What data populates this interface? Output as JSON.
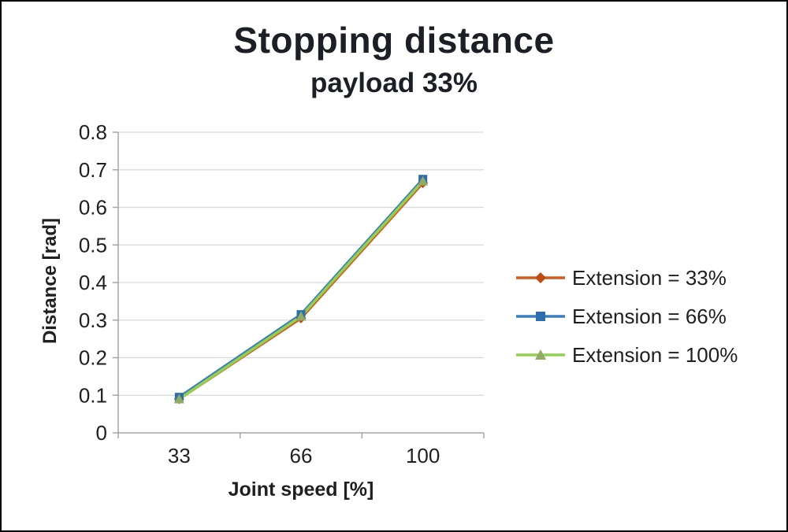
{
  "title": "Stopping distance",
  "subtitle": "payload 33%",
  "chart_data": {
    "type": "line",
    "categories": [
      33,
      66,
      100
    ],
    "x_tick_labels": [
      "33",
      "66",
      "100"
    ],
    "series": [
      {
        "name": "Extension = 33%",
        "values": [
          0.09,
          0.305,
          0.665
        ],
        "color": "#D45B1E",
        "marker_color": "#BE4B10",
        "marker": "diamond"
      },
      {
        "name": "Extension = 66%",
        "values": [
          0.095,
          0.315,
          0.675
        ],
        "color": "#3C7DC0",
        "marker_color": "#2E6DAE",
        "marker": "square"
      },
      {
        "name": "Extension = 100%",
        "values": [
          0.09,
          0.31,
          0.67
        ],
        "color": "#92D050",
        "marker_color": "#90AC62",
        "marker": "triangle"
      }
    ],
    "xlabel": "Joint speed [%]",
    "ylabel": "Distance [rad]",
    "ylim": [
      0,
      0.8
    ],
    "y_ticks": [
      0,
      0.1,
      0.2,
      0.3,
      0.4,
      0.5,
      0.6,
      0.7,
      0.8
    ],
    "y_tick_labels": [
      "0",
      "0.1",
      "0.2",
      "0.3",
      "0.4",
      "0.5",
      "0.6",
      "0.7",
      "0.8"
    ],
    "grid": true,
    "legend_position": "right"
  },
  "colors": {
    "grid": "#D9D9D9",
    "axis": "#A6A6A6",
    "tick_text": "#1f1f1f"
  }
}
